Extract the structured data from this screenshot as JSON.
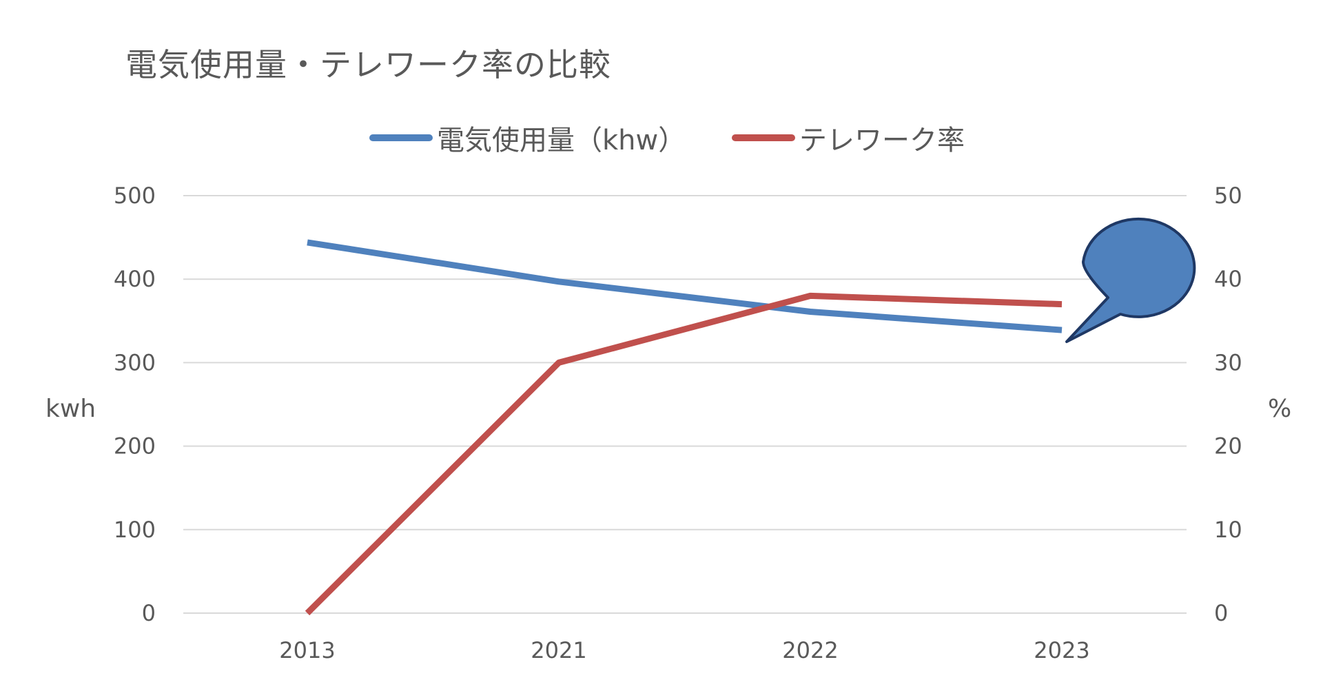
{
  "chart_data": {
    "type": "line",
    "title": "電気使用量・テレワーク率の比較",
    "categories": [
      "2013",
      "2021",
      "2022",
      "2023"
    ],
    "series": [
      {
        "name": "電気使用量（khw）",
        "axis": "left",
        "color": "#4F81BD",
        "values": [
          444,
          397,
          361,
          339
        ]
      },
      {
        "name": "テレワーク率",
        "axis": "right",
        "color": "#C0504D",
        "values": [
          0,
          30,
          38,
          37
        ]
      }
    ],
    "ylabel": "kwh",
    "ylim": [
      0,
      500
    ],
    "yticks": [
      "0",
      "100",
      "200",
      "300",
      "400",
      "500"
    ],
    "y2label": "%",
    "y2lim": [
      0,
      50
    ],
    "y2ticks": [
      "0",
      "10",
      "20",
      "30",
      "40",
      "50"
    ],
    "grid": true,
    "legend_position": "top",
    "callout": {
      "shape": "speech-bubble",
      "fill": "#4F81BD",
      "stroke": "#1F3864"
    }
  }
}
